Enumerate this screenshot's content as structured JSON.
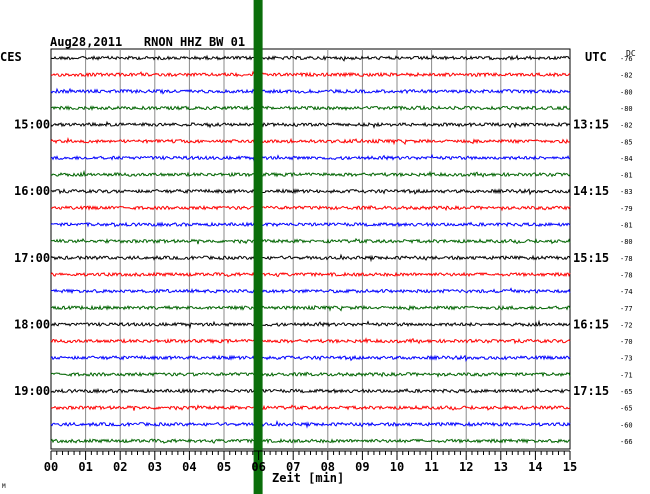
{
  "chart_data": {
    "type": "line",
    "title": "Aug28,2011   RNON HHZ BW 01",
    "left_label": "CES",
    "right_label": "UTC",
    "dc_label": "DC",
    "xlabel": "Zeit [min]",
    "xlim": [
      0,
      15
    ],
    "x_ticks": [
      "00",
      "01",
      "02",
      "03",
      "04",
      "05",
      "06",
      "07",
      "08",
      "09",
      "10",
      "11",
      "12",
      "13",
      "14",
      "15"
    ],
    "grid": true,
    "colors": [
      "#000000",
      "#ff0000",
      "#0000ff",
      "#006400"
    ],
    "marker": {
      "x_min": 6,
      "color": "#0a6e0a"
    },
    "time_labels_left": [
      {
        "row": 4,
        "text": "15:00"
      },
      {
        "row": 8,
        "text": "16:00"
      },
      {
        "row": 12,
        "text": "17:00"
      },
      {
        "row": 16,
        "text": "18:00"
      },
      {
        "row": 20,
        "text": "19:00"
      }
    ],
    "time_labels_right": [
      {
        "row": 4,
        "text": "13:15"
      },
      {
        "row": 8,
        "text": "14:15"
      },
      {
        "row": 12,
        "text": "15:15"
      },
      {
        "row": 16,
        "text": "16:15"
      },
      {
        "row": 20,
        "text": "17:15"
      }
    ],
    "dc_values": [
      "-76",
      "-82",
      "-80",
      "-80",
      "-82",
      "-85",
      "-84",
      "-81",
      "-83",
      "-79",
      "-81",
      "-80",
      "-78",
      "-78",
      "-74",
      "-77",
      "-72",
      "-70",
      "-73",
      "-71",
      "-65",
      "-65",
      "-60",
      "-66"
    ],
    "rows": 24
  },
  "corner_mark": "M"
}
